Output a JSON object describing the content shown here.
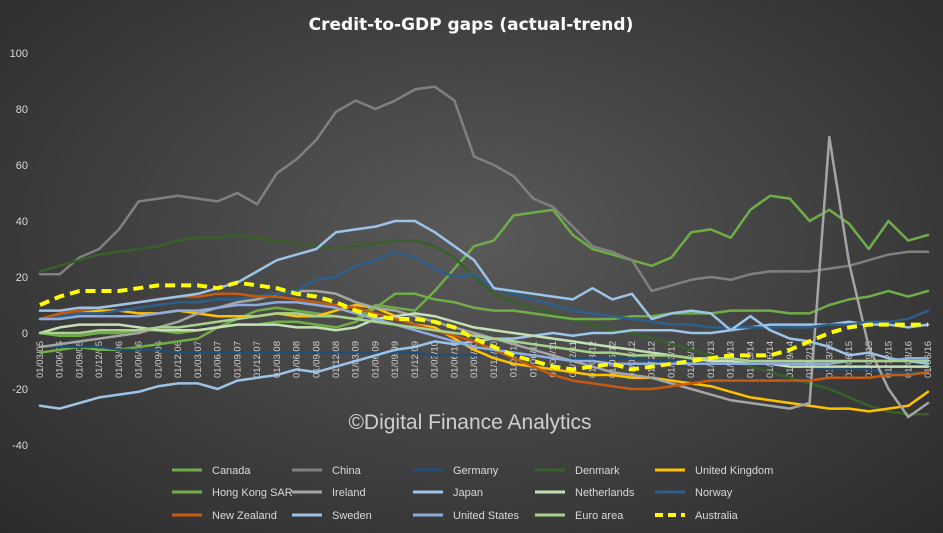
{
  "chart_data": {
    "type": "line",
    "title": "Credit-to-GDP  gaps  (actual-trend)",
    "watermark": "©Digital Finance Analytics",
    "ylim": [
      -40,
      100
    ],
    "yticks": [
      -40,
      -20,
      0,
      20,
      40,
      60,
      80,
      100
    ],
    "grid": false,
    "legend_position": "bottom",
    "x": [
      "01/03/05",
      "01/06/05",
      "01/09/05",
      "01/12/05",
      "01/03/06",
      "01/06/06",
      "01/09/06",
      "01/12/06",
      "01/03/07",
      "01/06/07",
      "01/09/07",
      "01/12/07",
      "01/03/08",
      "01/06/08",
      "01/09/08",
      "01/12/08",
      "01/03/09",
      "01/06/09",
      "01/09/09",
      "01/12/09",
      "01/03/10",
      "01/06/10",
      "01/09/10",
      "01/12/10",
      "01/03/11",
      "01/06/11",
      "01/09/11",
      "01/12/11",
      "01/03/12",
      "01/06/12",
      "01/09/12",
      "01/12/12",
      "01/03/13",
      "01/06/13",
      "01/09/13",
      "01/12/13",
      "01/03/14",
      "01/06/14",
      "01/09/14",
      "01/12/14",
      "01/03/15",
      "01/06/15",
      "01/09/15",
      "01/12/15",
      "01/03/16",
      "01/06/16"
    ],
    "x_tick_labels": [
      "01/03/05",
      "01/06/05",
      "01/09/05",
      "01/12/05",
      "01/03/06",
      "01/06/06",
      "01/09/06",
      "01/12/06",
      "01/03/07",
      "01/06/07",
      "01/09/07",
      "01/12/07",
      "01/03/08",
      "01/06/08",
      "01/09/08",
      "01/12/08",
      "01/03/09",
      "01/06/09",
      "01/09/09",
      "01/12/09",
      "01/03/10",
      "01/06/10",
      "01/09/10",
      "01/12/10",
      "01/03/11",
      "01/06/11",
      "01/09/11",
      "01/12/11",
      "01/03/12",
      "01/06/12",
      "01/09/12",
      "01/12/12",
      "01/03/13",
      "01/06/13",
      "01/09/13",
      "01/12/13",
      "01/03/14",
      "01/06/14",
      "01/09/14",
      "01/12/14",
      "01/03/15",
      "01/06/15",
      "01/09/15",
      "01/12/15",
      "01/03/16",
      "01/06/16"
    ],
    "series": [
      {
        "name": "Canada",
        "color": "#70ad47",
        "width": 2.5,
        "dash": "",
        "values": [
          -7,
          -6,
          -5,
          -6,
          -6,
          -5,
          -4,
          -3,
          -2,
          2,
          5,
          8,
          9,
          8,
          7,
          6,
          5,
          10,
          9,
          8,
          15,
          23,
          31,
          33,
          42,
          43,
          44,
          35,
          30,
          28,
          26,
          24,
          27,
          36,
          37,
          34,
          44,
          49,
          48,
          40,
          44,
          39,
          30,
          40,
          33,
          35
        ]
      },
      {
        "name": "China",
        "color": "#808080",
        "width": 2.5,
        "dash": "",
        "values": [
          21,
          21,
          27,
          30,
          37,
          47,
          48,
          49,
          48,
          47,
          50,
          46,
          57,
          62,
          69,
          79,
          83,
          80,
          83,
          87,
          88,
          83,
          63,
          60,
          56,
          48,
          45,
          38,
          31,
          29,
          26,
          15,
          17,
          19,
          20,
          19,
          21,
          22,
          22,
          22,
          23,
          24,
          26,
          28,
          29,
          29
        ]
      },
      {
        "name": "Germany",
        "color": "#1f4e79",
        "width": 2,
        "dash": "",
        "values": [
          -5,
          -5,
          -5,
          -5,
          -6,
          -6,
          -6,
          -7,
          -7,
          -7,
          -7,
          -7,
          -7,
          -7,
          -7,
          -7,
          -7,
          -7,
          -7,
          -7,
          -8,
          -8,
          -8,
          -8,
          -8,
          -8,
          -9,
          -9,
          -9,
          -9,
          -9,
          -10,
          -10,
          -10,
          -10,
          -10,
          -11,
          -11,
          -12,
          -12,
          -13,
          -13,
          -13,
          -14,
          -14,
          -14
        ]
      },
      {
        "name": "Denmark",
        "color": "#38602a",
        "width": 2.5,
        "dash": "",
        "values": [
          22,
          24,
          26,
          28,
          29,
          30,
          31,
          33,
          34,
          34,
          35,
          34,
          33,
          32,
          31,
          30,
          31,
          32,
          33,
          33,
          31,
          27,
          20,
          14,
          11,
          9,
          7,
          5,
          3,
          1,
          0,
          -2,
          -4,
          -6,
          -8,
          -10,
          -12,
          -14,
          -16,
          -18,
          -20,
          -23,
          -26,
          -28,
          -29,
          -29
        ]
      },
      {
        "name": "United Kingdom",
        "color": "#ffc000",
        "width": 2.5,
        "dash": "",
        "values": [
          5,
          6,
          7,
          8,
          8,
          7,
          7,
          8,
          7,
          6,
          6,
          6,
          7,
          6,
          6,
          8,
          10,
          9,
          6,
          3,
          2,
          -2,
          -6,
          -9,
          -11,
          -12,
          -13,
          -14,
          -15,
          -15,
          -16,
          -16,
          -17,
          -18,
          -19,
          -21,
          -23,
          -24,
          -25,
          -26,
          -27,
          -27,
          -28,
          -27,
          -26,
          -21
        ]
      },
      {
        "name": "Hong Kong SAR",
        "color": "#70ad47",
        "width": 2.5,
        "dash": "",
        "values": [
          0,
          -1,
          -1,
          0,
          0,
          1,
          1,
          0,
          1,
          2,
          3,
          3,
          4,
          4,
          3,
          2,
          4,
          9,
          14,
          14,
          12,
          11,
          9,
          8,
          8,
          7,
          6,
          5,
          5,
          5,
          6,
          6,
          7,
          7,
          7,
          8,
          8,
          8,
          7,
          7,
          10,
          12,
          13,
          15,
          13,
          15
        ]
      },
      {
        "name": "Ireland",
        "color": "#a5a5a5",
        "width": 2.5,
        "dash": "",
        "values": [
          -5,
          -4,
          -3,
          -2,
          -1,
          0,
          2,
          4,
          7,
          9,
          11,
          12,
          14,
          15,
          15,
          14,
          11,
          9,
          8,
          6,
          4,
          2,
          0,
          -2,
          -4,
          -6,
          -8,
          -10,
          -12,
          -14,
          -15,
          -16,
          -18,
          -20,
          -22,
          -24,
          -25,
          -26,
          -27,
          -25,
          70,
          25,
          -5,
          -20,
          -30,
          -25
        ]
      },
      {
        "name": "Japan",
        "color": "#9dc3e6",
        "width": 2.5,
        "dash": "",
        "values": [
          -26,
          -27,
          -25,
          -23,
          -22,
          -21,
          -19,
          -18,
          -18,
          -20,
          -17,
          -16,
          -15,
          -13,
          -14,
          -12,
          -10,
          -8,
          -6,
          -5,
          -3,
          -4,
          -3,
          -2,
          -2,
          -1,
          0,
          -1,
          0,
          0,
          1,
          1,
          1,
          0,
          0,
          1,
          2,
          3,
          3,
          3,
          3,
          4,
          3,
          3,
          2,
          3
        ]
      },
      {
        "name": "Netherlands",
        "color": "#c5e0b4",
        "width": 2.5,
        "dash": "",
        "values": [
          0,
          2,
          3,
          3,
          3,
          2,
          1,
          1,
          1,
          2,
          3,
          3,
          3,
          2,
          2,
          1,
          2,
          5,
          6,
          7,
          6,
          4,
          2,
          1,
          0,
          -1,
          -2,
          -3,
          -4,
          -5,
          -6,
          -7,
          -8,
          -9,
          -10,
          -10,
          -11,
          -11,
          -12,
          -12,
          -12,
          -12,
          -12,
          -12,
          -12,
          -12
        ]
      },
      {
        "name": "Norway",
        "color": "#2e5f8a",
        "width": 2.5,
        "dash": "",
        "values": [
          5,
          6,
          7,
          7,
          8,
          9,
          10,
          11,
          11,
          12,
          12,
          13,
          14,
          15,
          19,
          20,
          24,
          26,
          29,
          27,
          23,
          20,
          21,
          16,
          14,
          12,
          10,
          8,
          7,
          6,
          5,
          4,
          3,
          3,
          2,
          2,
          2,
          2,
          2,
          2,
          3,
          3,
          4,
          4,
          5,
          8
        ]
      },
      {
        "name": "New Zealand",
        "color": "#c55a11",
        "width": 2.5,
        "dash": "",
        "values": [
          5,
          7,
          8,
          9,
          10,
          11,
          12,
          13,
          13,
          14,
          14,
          13,
          13,
          12,
          11,
          10,
          9,
          7,
          5,
          3,
          1,
          -1,
          -3,
          -6,
          -9,
          -12,
          -15,
          -17,
          -18,
          -19,
          -20,
          -20,
          -19,
          -18,
          -17,
          -17,
          -17,
          -17,
          -17,
          -17,
          -16,
          -16,
          -16,
          -15,
          -15,
          -14
        ]
      },
      {
        "name": "Sweden",
        "color": "#9dc3e6",
        "width": 2.5,
        "dash": "",
        "values": [
          8,
          8,
          9,
          9,
          10,
          11,
          12,
          13,
          14,
          16,
          18,
          22,
          26,
          28,
          30,
          36,
          37,
          38,
          40,
          40,
          36,
          31,
          26,
          16,
          15,
          14,
          13,
          12,
          16,
          12,
          14,
          5,
          7,
          8,
          7,
          1,
          6,
          1,
          -2,
          -3,
          -5,
          -8,
          -7,
          -9,
          -10,
          -11
        ]
      },
      {
        "name": "United States",
        "color": "#8faadc",
        "width": 2.5,
        "dash": "",
        "values": [
          5,
          5,
          6,
          6,
          6,
          6,
          7,
          8,
          8,
          9,
          10,
          10,
          11,
          11,
          10,
          9,
          7,
          5,
          3,
          1,
          -1,
          -3,
          -5,
          -6,
          -7,
          -8,
          -9,
          -10,
          -10,
          -11,
          -11,
          -11,
          -11,
          -11,
          -11,
          -11,
          -11,
          -11,
          -11,
          -11,
          -11,
          -10,
          -10,
          -10,
          -9,
          -9
        ]
      },
      {
        "name": "Euro area",
        "color": "#a9d18e",
        "width": 2.5,
        "dash": "",
        "values": [
          0,
          0,
          0,
          1,
          1,
          1,
          2,
          2,
          3,
          4,
          5,
          6,
          7,
          7,
          6,
          6,
          5,
          4,
          3,
          2,
          1,
          0,
          -1,
          -2,
          -3,
          -4,
          -5,
          -6,
          -7,
          -7,
          -8,
          -8,
          -8,
          -9,
          -9,
          -9,
          -10,
          -10,
          -10,
          -10,
          -10,
          -10,
          -10,
          -10,
          -10,
          -10
        ]
      },
      {
        "name": "Australia",
        "color": "#ffff00",
        "width": 4,
        "dash": "10,6",
        "values": [
          10,
          13,
          15,
          15,
          15,
          16,
          17,
          17,
          17,
          16,
          18,
          17,
          16,
          14,
          13,
          11,
          8,
          6,
          5,
          5,
          4,
          2,
          -2,
          -5,
          -8,
          -10,
          -12,
          -13,
          -12,
          -11,
          -13,
          -12,
          -11,
          -10,
          -9,
          -8,
          -8,
          -8,
          -6,
          -3,
          0,
          2,
          3,
          3,
          3,
          3
        ]
      }
    ]
  }
}
